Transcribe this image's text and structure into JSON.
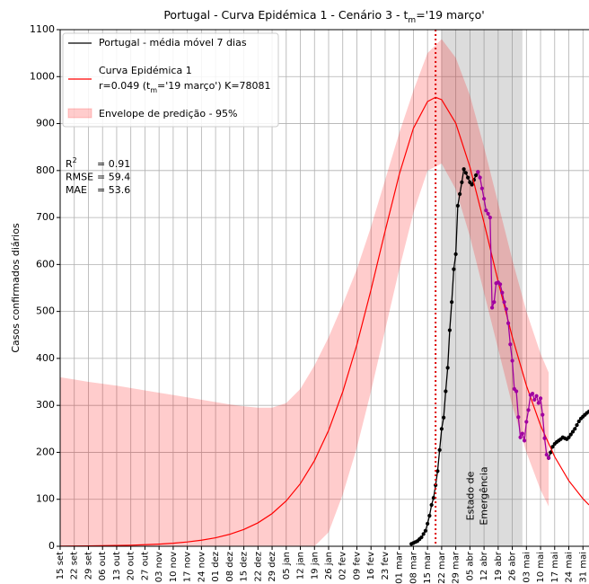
{
  "chart_data": {
    "type": "line",
    "title": [
      "Portugal - Curva Epidémica 1 - Cenário 3 - t",
      "m",
      "='19 março'"
    ],
    "ylabel": "Casos confirmados diários",
    "xlim": [
      0,
      262
    ],
    "xticks": [
      {
        "value": 0,
        "label": "15 set"
      },
      {
        "value": 7,
        "label": "22 set"
      },
      {
        "value": 14,
        "label": "29 set"
      },
      {
        "value": 21,
        "label": "06 out"
      },
      {
        "value": 28,
        "label": "13 out"
      },
      {
        "value": 35,
        "label": "20 out"
      },
      {
        "value": 42,
        "label": "27 out"
      },
      {
        "value": 49,
        "label": "03 nov"
      },
      {
        "value": 56,
        "label": "10 nov"
      },
      {
        "value": 63,
        "label": "17 nov"
      },
      {
        "value": 70,
        "label": "24 nov"
      },
      {
        "value": 77,
        "label": "01 dez"
      },
      {
        "value": 84,
        "label": "08 dez"
      },
      {
        "value": 91,
        "label": "15 dez"
      },
      {
        "value": 98,
        "label": "22 dez"
      },
      {
        "value": 105,
        "label": "29 dez"
      },
      {
        "value": 112,
        "label": "05 jan"
      },
      {
        "value": 119,
        "label": "12 jan"
      },
      {
        "value": 126,
        "label": "19 jan"
      },
      {
        "value": 133,
        "label": "26 jan"
      },
      {
        "value": 140,
        "label": "02 fev"
      },
      {
        "value": 147,
        "label": "09 fev"
      },
      {
        "value": 154,
        "label": "16 fev"
      },
      {
        "value": 161,
        "label": "23 fev"
      },
      {
        "value": 168,
        "label": "01 mar"
      },
      {
        "value": 175,
        "label": "08 mar"
      },
      {
        "value": 182,
        "label": "15 mar"
      },
      {
        "value": 189,
        "label": "22 mar"
      },
      {
        "value": 196,
        "label": "29 mar"
      },
      {
        "value": 203,
        "label": "05 abr"
      },
      {
        "value": 210,
        "label": "12 abr"
      },
      {
        "value": 217,
        "label": "19 abr"
      },
      {
        "value": 224,
        "label": "26 abr"
      },
      {
        "value": 231,
        "label": "03 mai"
      },
      {
        "value": 238,
        "label": "10 mai"
      },
      {
        "value": 245,
        "label": "17 mai"
      },
      {
        "value": 252,
        "label": "24 mai"
      },
      {
        "value": 259,
        "label": "31 mai"
      }
    ],
    "ylim": [
      0,
      1100
    ],
    "yticks": [
      0,
      100,
      200,
      300,
      400,
      500,
      600,
      700,
      800,
      900,
      1000,
      1100
    ],
    "grid": true,
    "legend": "upper left",
    "series": [
      {
        "name": "Portugal - média móvel 7 dias",
        "color": "#000000",
        "markers": true,
        "x": [
          174,
          175,
          176,
          177,
          178,
          179,
          180,
          181,
          182,
          183,
          184,
          185,
          186,
          187,
          188,
          189,
          190,
          191,
          192,
          193,
          194,
          195,
          196,
          197,
          198,
          199,
          200,
          201,
          202,
          203,
          204,
          205,
          206,
          207,
          208,
          209,
          210,
          211,
          212,
          213,
          214,
          215,
          216,
          217,
          218,
          219,
          220,
          221,
          222,
          223,
          224,
          225,
          226,
          227,
          228,
          229,
          230,
          231,
          232,
          233,
          234,
          235,
          236,
          237,
          238,
          239,
          240,
          241,
          242,
          243,
          244,
          245,
          246,
          247,
          248,
          249,
          250,
          251,
          252,
          253,
          254,
          255,
          256,
          257,
          258,
          259,
          260,
          261,
          262
        ],
        "values": [
          5,
          7,
          9,
          11,
          15,
          19,
          26,
          33,
          48,
          65,
          88,
          103,
          130,
          160,
          205,
          250,
          274,
          330,
          380,
          460,
          520,
          590,
          622,
          725,
          750,
          775,
          803,
          795,
          785,
          775,
          770,
          780,
          790,
          797,
          null,
          null,
          null,
          null,
          null,
          null,
          null,
          null,
          null,
          null,
          null,
          null,
          null,
          null,
          null,
          null,
          null,
          null,
          null,
          null,
          null,
          null,
          null,
          null,
          null,
          null,
          null,
          null,
          null,
          null,
          null,
          null,
          null,
          null,
          188,
          200,
          212,
          218,
          222,
          225,
          228,
          232,
          230,
          228,
          232,
          238,
          244,
          250,
          258,
          266,
          272,
          276,
          280,
          284,
          287
        ]
      },
      {
        "name": "Curva Epidémica 1",
        "parameters": [
          "r=0.049 (t",
          "m",
          "='19 março') K=78081"
        ],
        "color": "#ff0000",
        "markers": false,
        "x": [
          0,
          7,
          14,
          21,
          28,
          35,
          42,
          49,
          56,
          63,
          70,
          77,
          84,
          91,
          98,
          105,
          112,
          119,
          126,
          133,
          140,
          147,
          154,
          161,
          168,
          175,
          182,
          186,
          189,
          196,
          203,
          210,
          217,
          224,
          231,
          238,
          245,
          252,
          259,
          262
        ],
        "values": [
          0.4,
          0.6,
          0.8,
          1.2,
          1.7,
          2.3,
          3.3,
          4.6,
          6.5,
          9.2,
          12.9,
          18.1,
          25.5,
          35.7,
          49.9,
          69.6,
          96.6,
          133.3,
          182.4,
          246.7,
          328.8,
          429.2,
          545.9,
          671.2,
          791.8,
          889.8,
          946.9,
          956,
          950.8,
          900.8,
          807.6,
          689.0,
          563.4,
          445.5,
          342.1,
          257.2,
          190.6,
          139.5,
          101.2,
          88.0
        ]
      },
      {
        "color": "#a000a0",
        "markers": true,
        "x": [
          207,
          208,
          209,
          210,
          211,
          212,
          213,
          214,
          215,
          216,
          217,
          218,
          219,
          220,
          221,
          222,
          223,
          224,
          225,
          226,
          227,
          228,
          229,
          230,
          231,
          232,
          233,
          234,
          235,
          236,
          237,
          238,
          239,
          240,
          241,
          242
        ],
        "values": [
          797,
          785,
          762,
          740,
          715,
          708,
          700,
          508,
          520,
          560,
          562,
          558,
          540,
          520,
          505,
          475,
          430,
          395,
          335,
          330,
          275,
          232,
          240,
          225,
          265,
          290,
          322,
          325,
          312,
          320,
          305,
          315,
          280,
          230,
          195,
          188
        ]
      }
    ],
    "envelope": {
      "name": "Envelope de predição - 95%",
      "color": "#ff0000",
      "alpha": 0.2,
      "x": [
        0,
        7,
        14,
        21,
        28,
        35,
        42,
        49,
        56,
        63,
        70,
        77,
        84,
        91,
        98,
        105,
        112,
        119,
        126,
        133,
        140,
        147,
        154,
        161,
        168,
        175,
        182,
        189,
        196,
        203,
        210,
        217,
        224,
        231,
        238,
        242
      ],
      "upper": [
        360,
        355,
        350,
        346,
        342,
        337,
        332,
        327,
        322,
        317,
        312,
        307,
        302,
        298,
        295,
        295,
        305,
        335,
        385,
        445,
        515,
        590,
        680,
        780,
        880,
        970,
        1050,
        1080,
        1040,
        960,
        850,
        730,
        610,
        500,
        410,
        370
      ],
      "lower": [
        0,
        0,
        0,
        0,
        0,
        0,
        0,
        0,
        0,
        0,
        0,
        0,
        0,
        0,
        0,
        0,
        0,
        0,
        0,
        30,
        110,
        210,
        330,
        460,
        590,
        710,
        800,
        815,
        760,
        660,
        540,
        420,
        300,
        200,
        120,
        85
      ]
    },
    "tm_line": {
      "x": 186,
      "color": "#dd0000"
    },
    "emergency": {
      "x": [
        189,
        229
      ],
      "color": "#808080",
      "label": [
        "Estado de",
        "Emergência"
      ]
    },
    "stats": [
      {
        "label": "R",
        "sup": "2",
        "value": "= 0.91"
      },
      {
        "label": "RMSE",
        "value": "= 59.4"
      },
      {
        "label": "MAE",
        "value": "= 53.6"
      }
    ]
  }
}
